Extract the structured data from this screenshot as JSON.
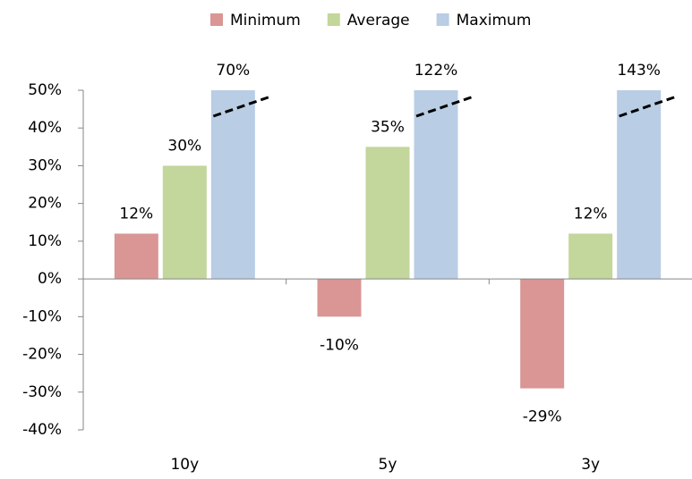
{
  "chart_data": {
    "type": "bar",
    "categories": [
      "10y",
      "5y",
      "3y"
    ],
    "series": [
      {
        "name": "Minimum",
        "color": "#d99694",
        "values": [
          12,
          -10,
          -29
        ],
        "value_labels": [
          "12%",
          "-10%",
          "-29%"
        ]
      },
      {
        "name": "Average",
        "color": "#c3d69b",
        "values": [
          30,
          35,
          12
        ],
        "value_labels": [
          "30%",
          "35%",
          "12%"
        ]
      },
      {
        "name": "Maximum",
        "color": "#b9cde5",
        "values": [
          70,
          122,
          143
        ],
        "value_labels": [
          "70%",
          "122%",
          "143%"
        ]
      }
    ],
    "ylim": [
      -40,
      50
    ],
    "yticks": [
      {
        "value": -40,
        "label": "-40%"
      },
      {
        "value": -30,
        "label": "-30%"
      },
      {
        "value": -20,
        "label": "-20%"
      },
      {
        "value": -10,
        "label": "-10%"
      },
      {
        "value": 0,
        "label": "0%"
      },
      {
        "value": 10,
        "label": "10%"
      },
      {
        "value": 20,
        "label": "20%"
      },
      {
        "value": 30,
        "label": "30%"
      },
      {
        "value": 40,
        "label": "40%"
      },
      {
        "value": 50,
        "label": "50%"
      }
    ],
    "grid": false,
    "legend": "top"
  }
}
